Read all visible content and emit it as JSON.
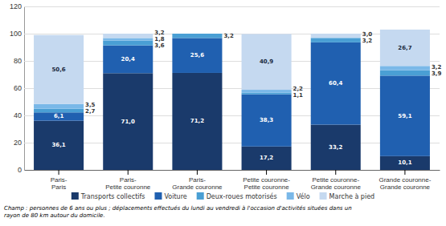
{
  "chart_data": {
    "type": "bar",
    "stacked": true,
    "data_labels": true,
    "grid": true,
    "categories": [
      "Paris-\nParis",
      "Paris-\nPetite couronne",
      "Paris-\nGrande couronne",
      "Petite couronne-\nPetite couronne",
      "Petite couronne-\nGrande couronne",
      "Grande couronne-\nGrande couronne"
    ],
    "series": [
      {
        "name": "Transports collectifs",
        "color": "#1a3a6b",
        "values": [
          36.1,
          71.0,
          71.2,
          17.2,
          33.2,
          10.1
        ],
        "value_labels": [
          "36,1",
          "71,0",
          "71,2",
          "17,2",
          "33,2",
          "10,1"
        ]
      },
      {
        "name": "Voiture",
        "color": "#2060b0",
        "values": [
          6.1,
          20.4,
          25.6,
          38.3,
          60.4,
          59.1
        ],
        "value_labels": [
          "6,1",
          "20,4",
          "25,6",
          "38,3",
          "60,4",
          "59,1"
        ]
      },
      {
        "name": "Deux-roues motorisés",
        "color": "#4a9fd4",
        "values": [
          2.7,
          3.6,
          3.2,
          1.1,
          3.2,
          3.9
        ],
        "value_labels": [
          "2,7",
          "3,6",
          "3,2",
          "1,1",
          "3,2",
          "3,9"
        ]
      },
      {
        "name": "Vélo",
        "color": "#7ab8e8",
        "values": [
          3.5,
          1.8,
          0.0,
          2.2,
          0.2,
          3.2
        ],
        "value_labels": [
          "3,5",
          "1,8",
          null,
          "2,2",
          null,
          "3,2"
        ]
      },
      {
        "name": "Marche à pied",
        "color": "#c5d9f0",
        "values": [
          50.6,
          3.2,
          0.0,
          40.9,
          3.0,
          26.7
        ],
        "value_labels": [
          "50,6",
          "3,2",
          null,
          "40,9",
          "3,0",
          "26,7"
        ]
      }
    ],
    "ylim": [
      0,
      120
    ],
    "yticks": [
      0,
      20,
      40,
      60,
      80,
      100,
      120
    ],
    "annotations": [
      "Champ : personnes de 6 ans ou plus ; déplacements effectués du lundi au vendredi à l'occasion d'activités situées dans un\nrayon de 80 km autour du domicile."
    ]
  }
}
